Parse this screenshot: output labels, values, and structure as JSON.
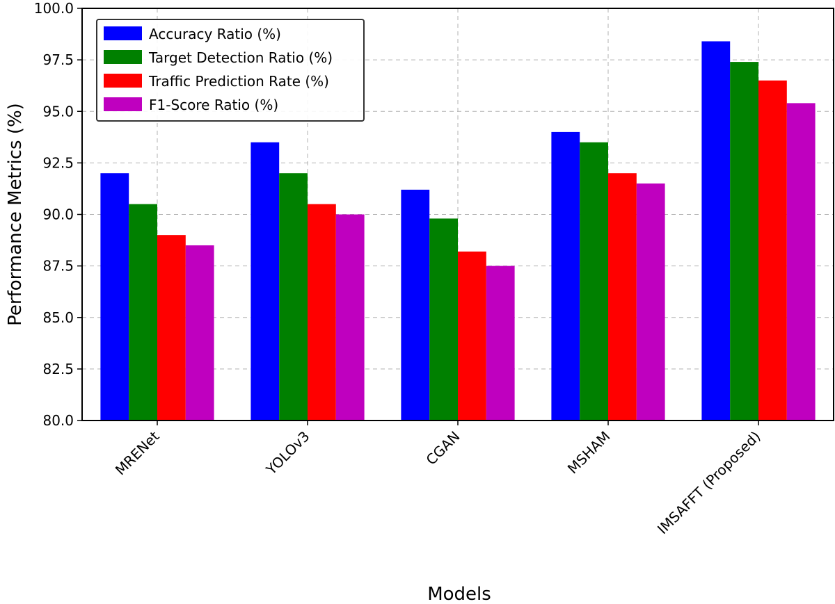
{
  "chart_data": {
    "type": "bar",
    "title": "",
    "xlabel": "Models",
    "ylabel": "Performance Metrics (%)",
    "ylim": [
      80,
      100
    ],
    "yticks": [
      "80.0",
      "82.5",
      "85.0",
      "87.5",
      "90.0",
      "92.5",
      "95.0",
      "97.5",
      "100.0"
    ],
    "grid": true,
    "legend_position": "top-left",
    "categories": [
      "MRENet",
      "YOLOv3",
      "CGAN",
      "MSHAM",
      "IMSAFFT (Proposed)"
    ],
    "series": [
      {
        "name": "Accuracy Ratio (%)",
        "color": "#0000ff",
        "values": [
          92.0,
          93.5,
          91.2,
          94.0,
          98.4
        ]
      },
      {
        "name": "Target Detection Ratio (%)",
        "color": "#008000",
        "values": [
          90.5,
          92.0,
          89.8,
          93.5,
          97.4
        ]
      },
      {
        "name": "Traffic Prediction Rate (%)",
        "color": "#ff0000",
        "values": [
          89.0,
          90.5,
          88.2,
          92.0,
          96.5
        ]
      },
      {
        "name": "F1-Score Ratio (%)",
        "color": "#bf00bf",
        "values": [
          88.5,
          90.0,
          87.5,
          91.5,
          95.4
        ]
      }
    ]
  }
}
